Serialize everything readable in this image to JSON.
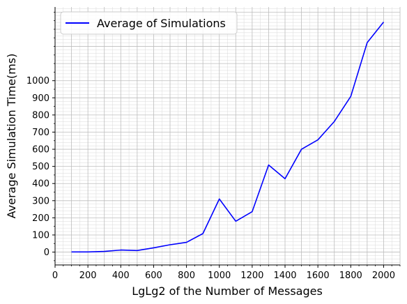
{
  "chart_data": {
    "type": "line",
    "xlabel": "LgLg2 of the Number of Messages",
    "ylabel": "Average Simulation Time(ms)",
    "xlim": [
      0,
      2100
    ],
    "ylim": [
      -75,
      1430
    ],
    "x_ticks": [
      0,
      200,
      400,
      600,
      800,
      1000,
      1200,
      1400,
      1600,
      1800,
      2000
    ],
    "y_ticks": [
      0,
      100,
      200,
      300,
      400,
      500,
      600,
      700,
      800,
      900,
      1000
    ],
    "grid": true,
    "minor_grid": true,
    "legend_position": "top-left",
    "series": [
      {
        "name": "Average of Simulations",
        "color": "#0000ff",
        "x": [
          100,
          200,
          300,
          400,
          500,
          600,
          700,
          800,
          900,
          1000,
          1100,
          1200,
          1300,
          1400,
          1500,
          1600,
          1700,
          1800,
          1900,
          2000
        ],
        "y": [
          1,
          1,
          4,
          12,
          9,
          25,
          43,
          57,
          108,
          310,
          180,
          236,
          508,
          428,
          600,
          655,
          762,
          908,
          1222,
          1342
        ]
      }
    ]
  }
}
